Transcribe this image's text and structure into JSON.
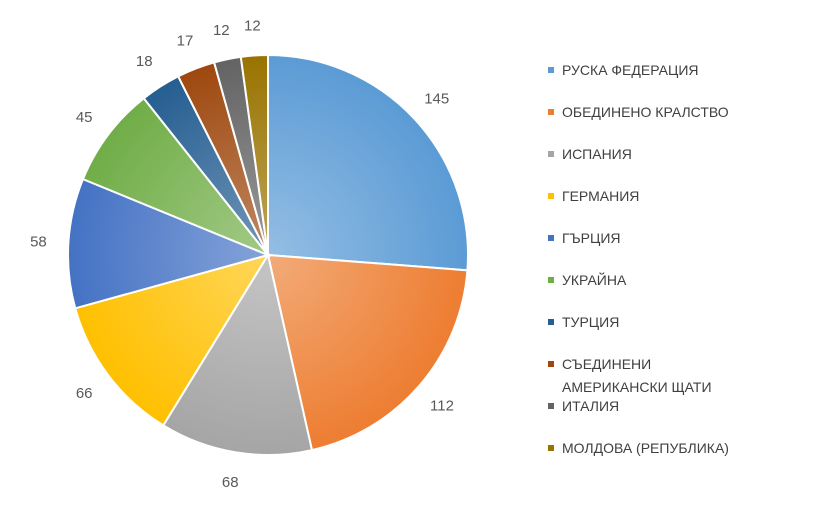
{
  "chart_data": {
    "type": "pie",
    "title": "",
    "categories": [
      "РУСКА ФЕДЕРАЦИЯ",
      "ОБЕДИНЕНО КРАЛСТВО",
      "ИСПАНИЯ",
      "ГЕРМАНИЯ",
      "ГЪРЦИЯ",
      "УКРАЙНА",
      "ТУРЦИЯ",
      "СЪЕДИНЕНИ АМЕРИКАНСКИ ЩАТИ",
      "ИТАЛИЯ",
      "МОЛДОВА (РЕПУБЛИКА)"
    ],
    "values": [
      145,
      112,
      68,
      66,
      58,
      45,
      18,
      17,
      12,
      12
    ],
    "colors": [
      "#5b9bd5",
      "#ed7d31",
      "#a5a5a5",
      "#ffc000",
      "#4472c4",
      "#70ad47",
      "#255e91",
      "#9e480e",
      "#636363",
      "#997300"
    ],
    "data_labels": true,
    "legend_position": "right",
    "start_angle_deg": 0,
    "direction": "clockwise"
  }
}
